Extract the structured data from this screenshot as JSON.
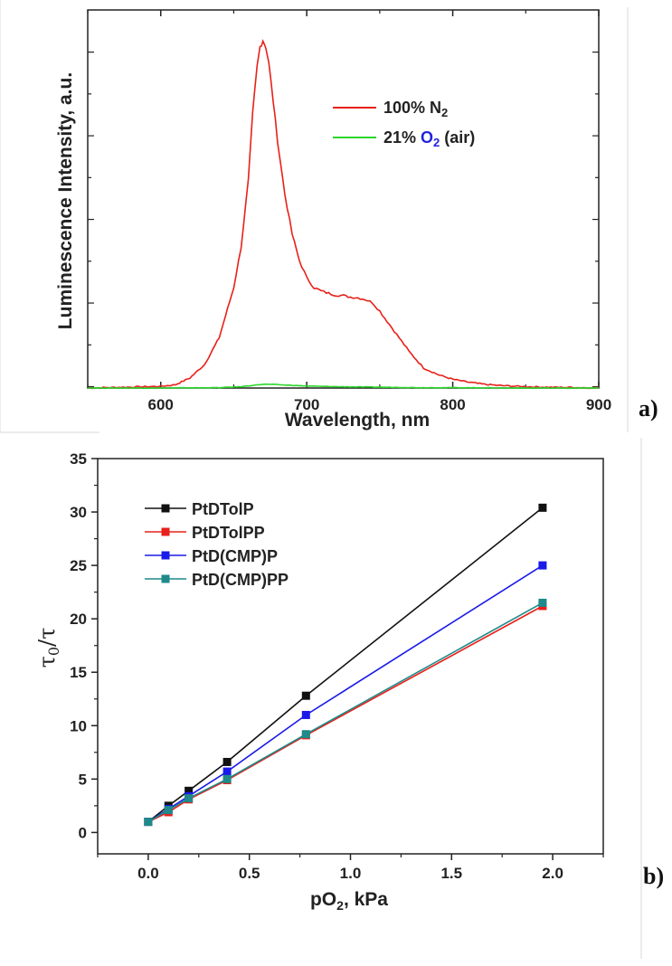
{
  "chart_data": [
    {
      "type": "line",
      "panel_label": "a)",
      "xlabel": "Wavelength, nm",
      "ylabel": "Luminescence Intensity, a.u.",
      "xlim": [
        550,
        900
      ],
      "ylim": [
        0,
        1.13
      ],
      "x_ticks": [
        "600",
        "700",
        "800",
        "900"
      ],
      "x_tick_values": [
        600,
        700,
        800,
        900
      ],
      "y_tick_labels_shown": false,
      "legend_position": "top-right",
      "series": [
        {
          "name": "100% N2",
          "legend_main": "100% N",
          "legend_sub": "2",
          "color": "#e8201a",
          "x": [
            550,
            600,
            610,
            620,
            630,
            640,
            650,
            655,
            660,
            663,
            666,
            668,
            670,
            672,
            674,
            677,
            680,
            685,
            690,
            695,
            700,
            705,
            710,
            715,
            720,
            725,
            730,
            735,
            740,
            745,
            750,
            755,
            760,
            765,
            770,
            775,
            780,
            790,
            800,
            810,
            820,
            830,
            840,
            850,
            860,
            870,
            880,
            890,
            900
          ],
          "y": [
            0.0,
            0.005,
            0.01,
            0.03,
            0.07,
            0.15,
            0.3,
            0.42,
            0.62,
            0.82,
            0.96,
            1.02,
            1.04,
            1.02,
            0.97,
            0.86,
            0.74,
            0.58,
            0.46,
            0.38,
            0.33,
            0.3,
            0.29,
            0.283,
            0.278,
            0.276,
            0.272,
            0.27,
            0.265,
            0.255,
            0.23,
            0.2,
            0.17,
            0.14,
            0.11,
            0.085,
            0.06,
            0.04,
            0.026,
            0.018,
            0.012,
            0.008,
            0.006,
            0.004,
            0.003,
            0.002,
            0.002,
            0.001,
            0.001
          ]
        },
        {
          "name": "21% O2 (air)",
          "legend_pre": "21% ",
          "legend_o": "O",
          "legend_sub": "2",
          "legend_post": " (air)",
          "legend_o_color": "#2222dd",
          "color": "#2ad62a",
          "x": [
            550,
            600,
            640,
            655,
            665,
            670,
            675,
            680,
            690,
            700,
            720,
            740,
            760,
            780,
            800,
            850,
            900
          ],
          "y": [
            0.0,
            0.0,
            0.001,
            0.004,
            0.009,
            0.011,
            0.011,
            0.01,
            0.008,
            0.006,
            0.004,
            0.003,
            0.002,
            0.001,
            0.001,
            0.0,
            0.0
          ]
        }
      ]
    },
    {
      "type": "line",
      "panel_label": "b)",
      "xlabel_main": "pO",
      "xlabel_sub": "2",
      "xlabel_post": ", kPa",
      "ylabel_tau": "τ",
      "ylabel_sub": "0",
      "ylabel_post": "/τ",
      "xlim": [
        -0.25,
        2.25
      ],
      "ylim": [
        -2,
        35
      ],
      "x_ticks": [
        "0.0",
        "0.5",
        "1.0",
        "1.5",
        "2.0"
      ],
      "x_tick_values": [
        0,
        0.5,
        1.0,
        1.5,
        2.0
      ],
      "y_ticks": [
        "0",
        "5",
        "10",
        "15",
        "20",
        "25",
        "30",
        "35"
      ],
      "y_tick_values": [
        0,
        5,
        10,
        15,
        20,
        25,
        30,
        35
      ],
      "legend_position": "top-left",
      "x": [
        0.0,
        0.1,
        0.2,
        0.39,
        0.78,
        1.95
      ],
      "series": [
        {
          "name": "PtDTolP",
          "color": "#111111",
          "values": [
            1.0,
            2.5,
            3.9,
            6.6,
            12.8,
            30.4
          ]
        },
        {
          "name": "PtDTolPP",
          "color": "#e8201a",
          "values": [
            1.0,
            1.9,
            3.1,
            4.9,
            9.1,
            21.2
          ]
        },
        {
          "name": "PtD(CMP)P",
          "color": "#1a1ae8",
          "values": [
            1.0,
            2.2,
            3.4,
            5.7,
            11.0,
            25.0
          ]
        },
        {
          "name": "PtD(CMP)PP",
          "color": "#1e8a8a",
          "values": [
            1.0,
            2.1,
            3.2,
            5.0,
            9.2,
            21.5
          ]
        }
      ]
    }
  ]
}
